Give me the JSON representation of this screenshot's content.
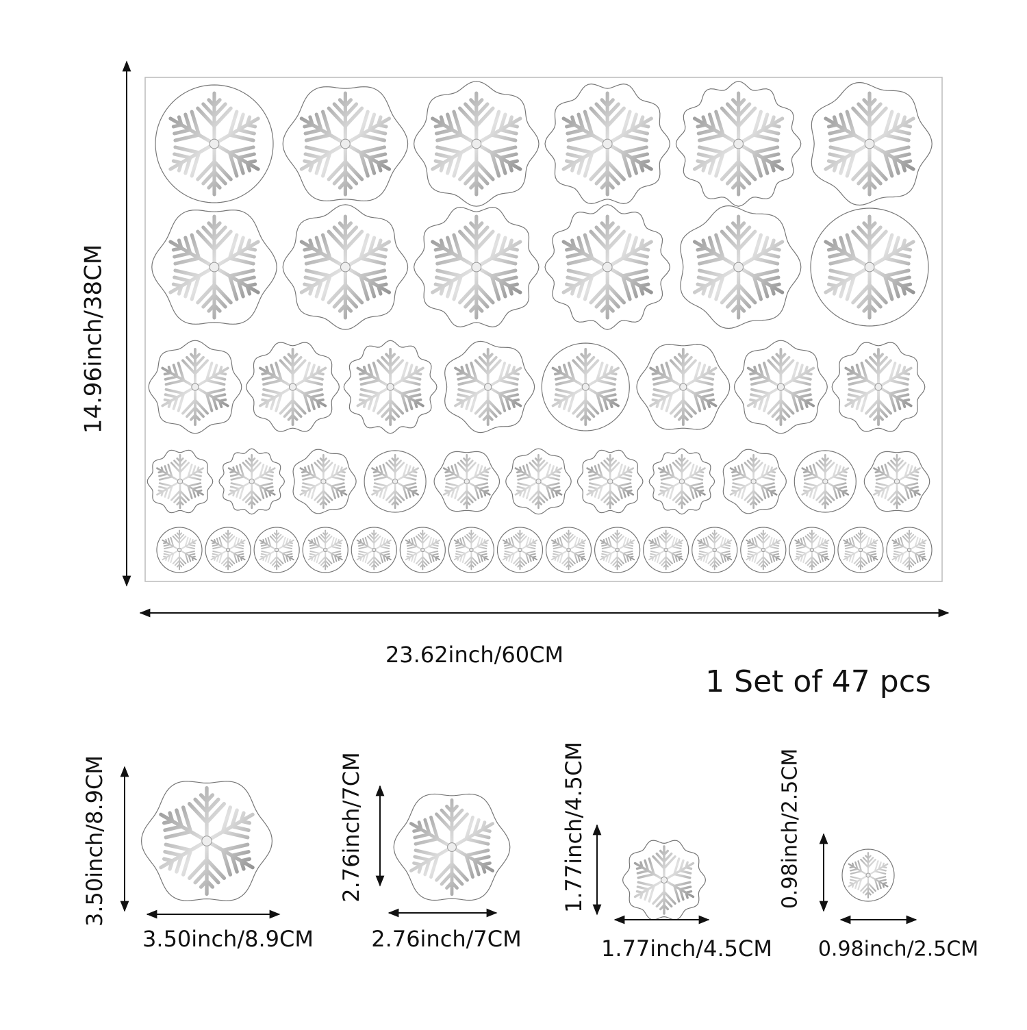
{
  "sheet": {
    "height_label": "14.96inch/38CM",
    "width_label": "23.62inch/60CM"
  },
  "set_label": "1 Set of 47 pcs",
  "sizes": [
    {
      "height": "3.50inch/8.9CM",
      "width": "3.50inch/8.9CM"
    },
    {
      "height": "2.76inch/7CM",
      "width": "2.76inch/7CM"
    },
    {
      "height": "1.77inch/4.5CM",
      "width": "1.77inch/4.5CM"
    },
    {
      "height": "0.98inch/2.5CM",
      "width": "0.98inch/2.5CM"
    }
  ]
}
